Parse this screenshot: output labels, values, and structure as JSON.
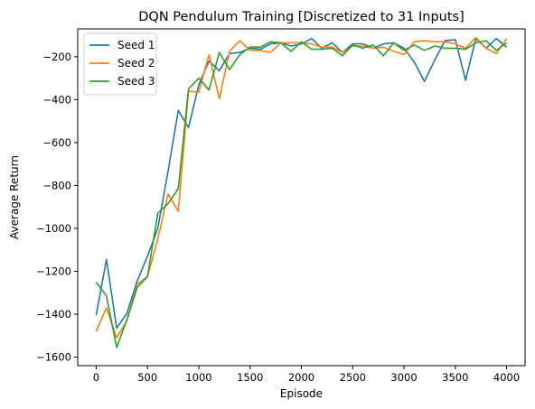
{
  "chart_data": {
    "type": "line",
    "title": "DQN Pendulum Training [Discretized to 31 Inputs]",
    "xlabel": "Episode",
    "ylabel": "Average Return",
    "xlim": [
      -180,
      4180
    ],
    "ylim": [
      -1640,
      -70
    ],
    "xticks": [
      0,
      500,
      1000,
      1500,
      2000,
      2500,
      3000,
      3500,
      4000
    ],
    "xtick_labels": [
      "0",
      "500",
      "1000",
      "1500",
      "2000",
      "2500",
      "3000",
      "3500",
      "4000"
    ],
    "yticks": [
      -1600,
      -1400,
      -1200,
      -1000,
      -800,
      -600,
      -400,
      -200
    ],
    "ytick_labels": [
      "−1600",
      "−1400",
      "−1200",
      "−1000",
      "−800",
      "−600",
      "−400",
      "−200"
    ],
    "grid": false,
    "legend_position": "top-left",
    "x": [
      0,
      100,
      200,
      300,
      400,
      500,
      600,
      700,
      800,
      900,
      1000,
      1100,
      1200,
      1300,
      1400,
      1500,
      1600,
      1700,
      1800,
      1900,
      2000,
      2100,
      2200,
      2300,
      2400,
      2500,
      2600,
      2700,
      2800,
      2900,
      3000,
      3100,
      3200,
      3300,
      3400,
      3500,
      3600,
      3700,
      3800,
      3900,
      4000
    ],
    "series": [
      {
        "name": "Seed 1",
        "color": "#1f77b4",
        "values": [
          -1405,
          -1145,
          -1465,
          -1395,
          -1245,
          -1130,
          -1000,
          -735,
          -450,
          -530,
          -330,
          -220,
          -265,
          -185,
          -180,
          -160,
          -165,
          -140,
          -135,
          -150,
          -140,
          -115,
          -160,
          -135,
          -180,
          -140,
          -140,
          -160,
          -140,
          -135,
          -160,
          -225,
          -315,
          -215,
          -125,
          -120,
          -310,
          -115,
          -160,
          -115,
          -155
        ]
      },
      {
        "name": "Seed 2",
        "color": "#ff7f0e",
        "values": [
          -1480,
          -1370,
          -1510,
          -1430,
          -1260,
          -1225,
          -1050,
          -840,
          -920,
          -360,
          -365,
          -190,
          -395,
          -175,
          -125,
          -170,
          -170,
          -180,
          -135,
          -135,
          -135,
          -140,
          -155,
          -155,
          -180,
          -150,
          -150,
          -160,
          -155,
          -175,
          -190,
          -130,
          -125,
          -130,
          -130,
          -140,
          -160,
          -110,
          -160,
          -185,
          -115
        ]
      },
      {
        "name": "Seed 3",
        "color": "#2ca02c",
        "values": [
          -1250,
          -1315,
          -1555,
          -1425,
          -1275,
          -1225,
          -930,
          -885,
          -815,
          -350,
          -300,
          -355,
          -180,
          -260,
          -190,
          -155,
          -155,
          -130,
          -135,
          -175,
          -130,
          -165,
          -165,
          -160,
          -195,
          -145,
          -160,
          -145,
          -195,
          -135,
          -170,
          -145,
          -170,
          -150,
          -160,
          -160,
          -165,
          -135,
          -125,
          -170,
          -135
        ]
      }
    ]
  }
}
